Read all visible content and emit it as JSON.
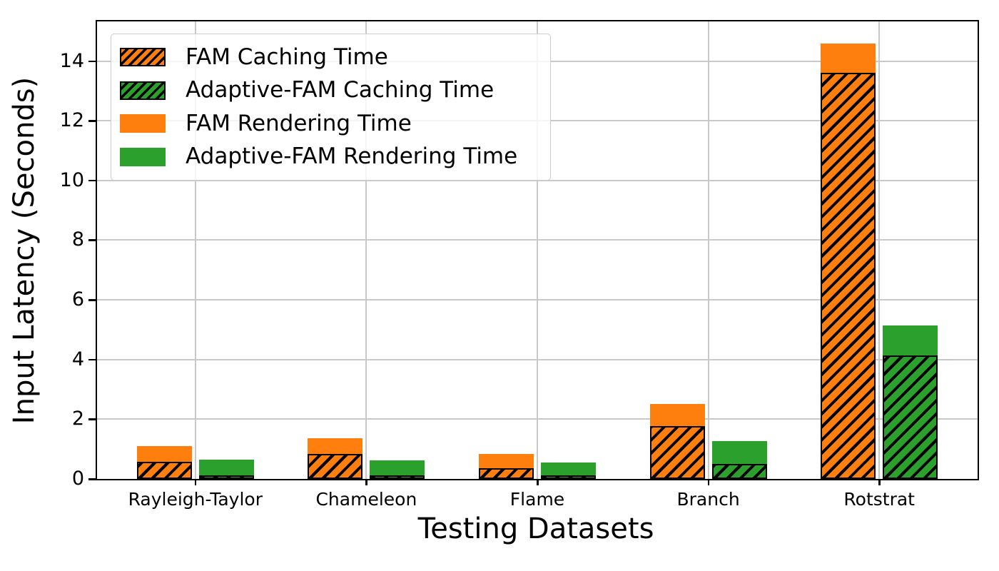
{
  "chart_data": {
    "type": "bar",
    "stacked": true,
    "title": "",
    "xlabel": "Testing Datasets",
    "ylabel": "Input Latency (Seconds)",
    "categories": [
      "Rayleigh-Taylor",
      "Chameleon",
      "Flame",
      "Branch",
      "Rotstrat"
    ],
    "series": [
      {
        "name": "FAM Caching Time",
        "color": "#ff7f0e",
        "hatch": true,
        "values": [
          0.57,
          0.83,
          0.37,
          1.76,
          13.62
        ]
      },
      {
        "name": "Adaptive-FAM Caching Time",
        "color": "#2ca02c",
        "hatch": true,
        "values": [
          0.11,
          0.11,
          0.12,
          0.5,
          4.14
        ]
      },
      {
        "name": "FAM Rendering Time",
        "color": "#ff7f0e",
        "hatch": false,
        "values": [
          0.53,
          0.53,
          0.47,
          0.76,
          0.98
        ]
      },
      {
        "name": "Adaptive-FAM Rendering Time",
        "color": "#2ca02c",
        "hatch": false,
        "values": [
          0.54,
          0.52,
          0.42,
          0.77,
          1.01
        ]
      }
    ],
    "stacks": [
      {
        "group": "FAM",
        "bottom_series": 0,
        "top_series": 2
      },
      {
        "group": "Adaptive-FAM",
        "bottom_series": 1,
        "top_series": 3
      }
    ],
    "bar_totals": {
      "FAM": [
        1.1,
        1.36,
        0.84,
        2.52,
        14.6
      ],
      "Adaptive-FAM": [
        0.65,
        0.63,
        0.54,
        1.27,
        5.15
      ]
    },
    "yticks": [
      0,
      2,
      4,
      6,
      8,
      10,
      12,
      14
    ],
    "ylim": [
      0,
      15.33
    ],
    "grid": true,
    "grid_color": "#c9c9c9",
    "legend_position": "upper left",
    "hatch_style": "diagonal-forward",
    "colors": {
      "fam": "#ff7f0e",
      "adaptive_fam": "#2ca02c",
      "edge": "#000000"
    }
  }
}
